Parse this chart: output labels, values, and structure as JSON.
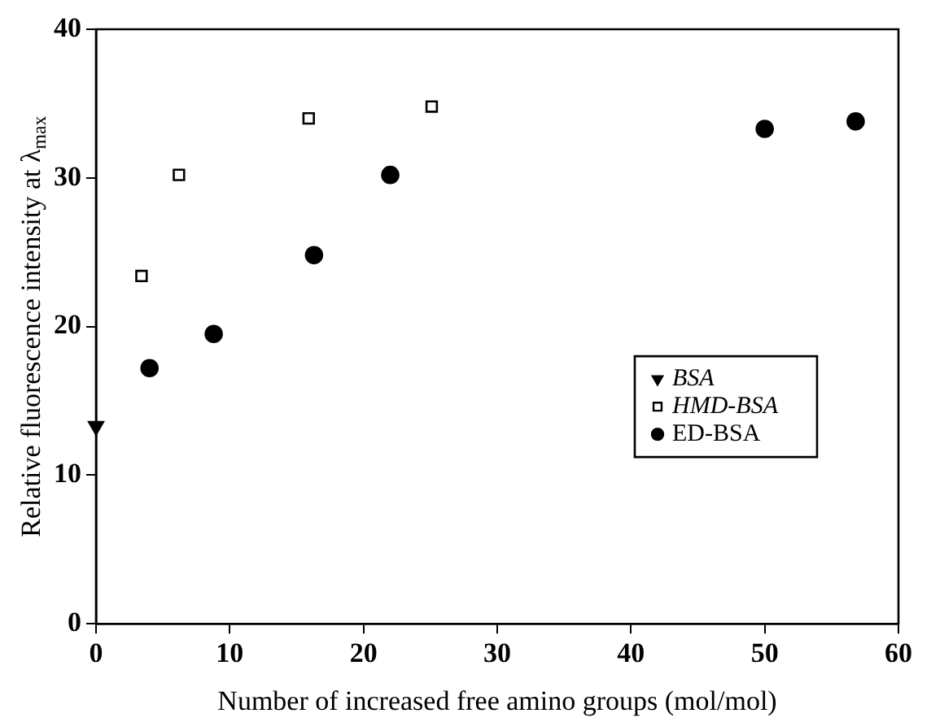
{
  "chart_data": {
    "type": "scatter",
    "xlabel": "Number of increased free amino groups (mol/mol)",
    "ylabel": "Relative fluorescence intensity at λ$_{max}$",
    "xlim": [
      0,
      60
    ],
    "xticks": [
      0,
      10,
      20,
      30,
      40,
      50,
      60
    ],
    "ylim": [
      0,
      40
    ],
    "yticks": [
      0,
      10,
      20,
      30,
      40
    ],
    "grid": false,
    "legend": "right",
    "series": [
      {
        "name": "BSA",
        "color": "#000000",
        "marker": "triangle",
        "x": [
          0
        ],
        "values": [
          13.3
        ]
      },
      {
        "name": "HMD-BSA",
        "color": "#000000",
        "marker": "square",
        "x": [
          3.4,
          6.2,
          15.9,
          25.1
        ],
        "values": [
          23.4,
          30.2,
          34.0,
          34.8
        ]
      },
      {
        "name": "ED-BSA",
        "color": "#000000",
        "marker": "circle",
        "x": [
          4.0,
          8.8,
          16.3,
          22.0,
          50.0,
          56.8
        ],
        "values": [
          17.2,
          19.5,
          24.8,
          30.2,
          33.3,
          33.8
        ]
      }
    ]
  }
}
